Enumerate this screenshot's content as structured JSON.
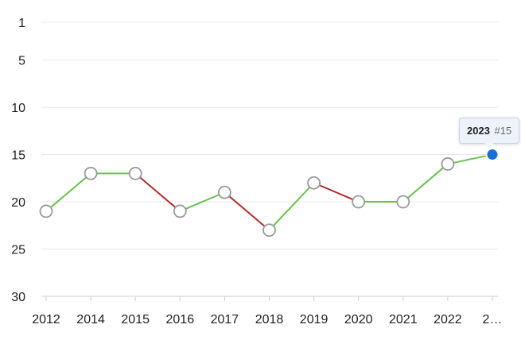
{
  "chart_data": {
    "type": "line",
    "title": "",
    "xlabel": "",
    "ylabel": "",
    "y_inverted": true,
    "ylim": [
      1,
      30
    ],
    "y_ticks": [
      1,
      5,
      10,
      15,
      20,
      25,
      30
    ],
    "categories": [
      "2012",
      "2014",
      "2015",
      "2016",
      "2017",
      "2018",
      "2019",
      "2020",
      "2021",
      "2022",
      "2…"
    ],
    "values": [
      21,
      17,
      17,
      21,
      19,
      23,
      18,
      20,
      20,
      16,
      15
    ],
    "colors": {
      "improve": "#66c24a",
      "decline": "#b52a2e",
      "marker_fill": "#ffffff",
      "marker_stroke": "#999999",
      "highlight": "#1a6fd6",
      "grid": "#e8e8e8"
    },
    "tooltip": {
      "year": "2023",
      "rank": "#15"
    }
  }
}
